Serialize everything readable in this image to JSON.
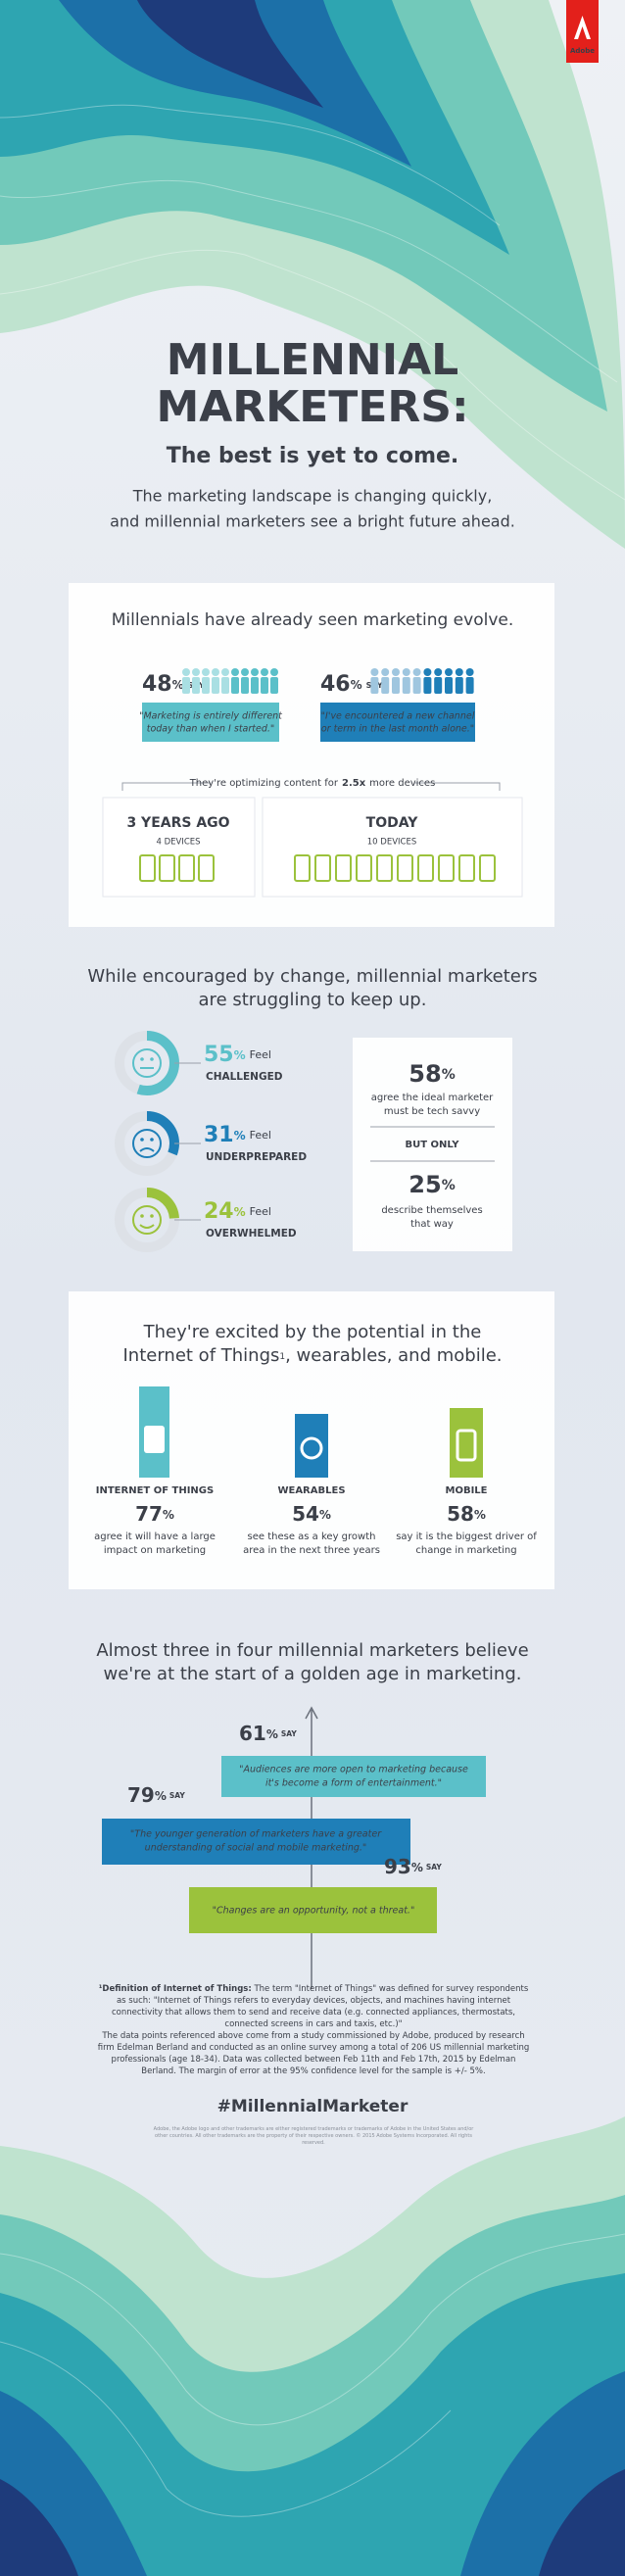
{
  "logo": "Adobe",
  "header": {
    "title_line1": "MILLENNIAL",
    "title_line2": "MARKETERS:",
    "subtitle": "The best is yet to come.",
    "intro_line1": "The marketing landscape is changing quickly,",
    "intro_line2": "and millennial marketers see a bright future ahead."
  },
  "evolve": {
    "heading": "Millennials have already seen marketing evolve.",
    "stats": [
      {
        "value": 48,
        "unit": "%",
        "say": "SAY",
        "quote_line1": "\"Marketing is entirely different",
        "quote_line2": "today than when I started.\""
      },
      {
        "value": 46,
        "unit": "%",
        "say": "SAY",
        "quote_line1": "\"I've encountered a new channel",
        "quote_line2": "or term in the last month alone.\""
      }
    ],
    "devices_note": {
      "before": "They're optimizing content for",
      "bold": "2.5x",
      "after": "more devices"
    },
    "then": {
      "label": "3 YEARS AGO",
      "devices": "4 DEVICES"
    },
    "now": {
      "label": "TODAY",
      "devices": "10 DEVICES"
    }
  },
  "struggle": {
    "heading_line1": "While encouraged by change, millennial marketers",
    "heading_line2": "are struggling to keep up.",
    "feelings": [
      {
        "value": 55,
        "unit": "%",
        "feel": "Feel",
        "label": "CHALLENGED"
      },
      {
        "value": 31,
        "unit": "%",
        "feel": "Feel",
        "label": "UNDERPREPARED"
      },
      {
        "value": 24,
        "unit": "%",
        "feel": "Feel",
        "label": "OVERWHELMED"
      }
    ],
    "ideal": {
      "value": 58,
      "unit": "%",
      "desc_line1": "agree the ideal marketer",
      "desc_line2": "must be tech savvy",
      "but": "BUT ONLY",
      "value2": 25,
      "unit2": "%",
      "desc2_line1": "describe themselves",
      "desc2_line2": "that way"
    }
  },
  "tech": {
    "heading_line1": "They're excited by the potential in the",
    "heading_line2a": "Internet of Things",
    "sup": "1",
    "heading_line2b": ", wearables, and mobile.",
    "items": [
      {
        "label": "INTERNET OF THINGS",
        "value": 77,
        "unit": "%",
        "desc_line1": "agree it will have a large",
        "desc_line2": "impact on marketing"
      },
      {
        "label": "WEARABLES",
        "value": 54,
        "unit": "%",
        "desc_line1": "see these as a key growth",
        "desc_line2": "area in the next three years"
      },
      {
        "label": "MOBILE",
        "value": 58,
        "unit": "%",
        "desc_line1": "say it is the biggest driver of",
        "desc_line2": "change in marketing"
      }
    ]
  },
  "golden": {
    "heading_line1": "Almost three in four millennial marketers believe",
    "heading_line2": "we're at the start of a golden age in marketing.",
    "statements": [
      {
        "value": 61,
        "unit": "%",
        "say": "SAY",
        "quote_line1": "\"Audiences are more open to marketing because",
        "quote_line2": "it's become a form of entertainment.\""
      },
      {
        "value": 79,
        "unit": "%",
        "say": "SAY",
        "quote_line1": "\"The younger generation of marketers have a greater",
        "quote_line2": "understanding of social and mobile marketing.\""
      },
      {
        "value": 93,
        "unit": "%",
        "say": "SAY",
        "quote_line1": "\"Changes are an opportunity, not a threat.\""
      }
    ]
  },
  "footnotes": {
    "def_label": "¹Definition of Internet of Things:",
    "def_text": "The term \"Internet of Things\" was defined for survey respondents as such: \"Internet of Things refers to everyday devices, objects, and machines having internet connectivity that allows them to send and receive data (e.g. connected appliances, thermostats, connected screens in cars and taxis, etc.)\"",
    "method": "The data points referenced above come from a study commissioned by Adobe, produced by research firm Edelman Berland and conducted as an online survey among a total of 206 US millennial marketing professionals (age 18-34). Data was collected between Feb 11th and Feb 17th, 2015 by Edelman Berland. The margin of error at the 95% confidence level for the sample is +/- 5%."
  },
  "hashtag": "#MillennialMarketer",
  "legal": "Adobe, the Adobe logo and other trademarks are either registered trademarks or trademarks of Adobe in the United States and/or other countries. All other trademarks are the property of their respective owners. © 2015 Adobe Systems Incorporated. All rights reserved."
}
